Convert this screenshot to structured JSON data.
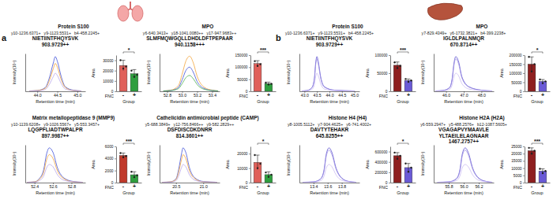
{
  "chart_data": [
    {
      "type": "line",
      "title": "Protein S100",
      "annotations": [
        "a"
      ],
      "ions": [
        "y10-1236.6371+",
        "y9-1123.5531+",
        "b4-458.2245+"
      ],
      "sequence": [
        "NIETIINTFHQYSVK"
      ],
      "mz": "903.9729++",
      "xlabel": "Retention time (min)",
      "ylabel": "Intensity(10⁵)",
      "x": [
        43.8,
        44.0,
        44.2,
        44.3,
        44.4,
        44.45,
        44.5,
        44.6,
        44.7,
        44.9,
        45.1
      ],
      "xlim": [
        43.7,
        45.2
      ],
      "xticks": [
        {
          "value": 44,
          "label": "44.0"
        },
        44.5,
        {
          "value": 45,
          "label": "45.0"
        }
      ],
      "ylim": [
        0,
        10
      ],
      "tick_labels": "x",
      "series": [
        {
          "color": "#3f51d8",
          "values": [
            0.1,
            0.2,
            1.0,
            3.5,
            7.5,
            9.2,
            8.0,
            3.8,
            1.2,
            0.3,
            0.1
          ]
        },
        {
          "color": "#f2a33a",
          "values": [
            0.1,
            0.2,
            0.8,
            2.8,
            6.0,
            7.4,
            6.4,
            3.0,
            1.0,
            0.2,
            0.1
          ]
        },
        {
          "color": "#b9a6ea",
          "values": [
            0.1,
            0.1,
            0.5,
            1.8,
            3.9,
            4.8,
            4.2,
            2.0,
            0.6,
            0.2,
            0.1
          ]
        }
      ]
    },
    {
      "type": "bar",
      "xlabel": "Group",
      "ylabel": "Area",
      "annotations": [
        "FNC"
      ],
      "categories": [
        "-",
        "+"
      ],
      "values": [
        25000,
        17000
      ],
      "errors": [
        5000,
        4000
      ],
      "points": [
        [
          30000,
          22000,
          24000
        ],
        [
          20000,
          14000,
          16000
        ]
      ],
      "colors": [
        "#e0605a",
        "#2e9e3e"
      ],
      "ylim": [
        0,
        35000
      ],
      "yticks": [
        0,
        10000,
        20000,
        30000
      ],
      "significance": "*"
    },
    {
      "type": "line",
      "title": "MPO",
      "ions": [
        "y6-640.3413+",
        "y18-1041.0080++",
        "y17-947.9683++"
      ],
      "sequence": [
        "SLMFMQWGQLLDHDLDFTPEPAAR"
      ],
      "mz": "940.1158+++",
      "xlabel": "Retention time (min)",
      "ylabel": "Intensity(10⁵)",
      "x": [
        52.75,
        52.85,
        52.95,
        53.0,
        53.05,
        53.1,
        53.15,
        53.2,
        53.3,
        53.4,
        53.48
      ],
      "xlim": [
        52.7,
        53.5
      ],
      "xticks": [
        52.8,
        {
          "value": 53,
          "label": "53.0"
        },
        53.2,
        53.4
      ],
      "ylim": [
        0,
        10
      ],
      "tick_labels": "x",
      "series": [
        {
          "color": "#f2a33a",
          "values": [
            0.1,
            0.3,
            1.5,
            4.5,
            8.0,
            9.3,
            7.5,
            4.0,
            1.0,
            0.3,
            0.1
          ]
        },
        {
          "color": "#3f51d8",
          "values": [
            0.1,
            0.2,
            1.0,
            3.0,
            5.5,
            6.4,
            5.0,
            2.6,
            0.7,
            0.2,
            0.1
          ]
        },
        {
          "color": "#4caf50",
          "values": [
            0.1,
            0.2,
            0.7,
            2.0,
            3.6,
            4.2,
            3.3,
            1.8,
            0.5,
            0.2,
            0.1
          ]
        }
      ]
    },
    {
      "type": "bar",
      "xlabel": "Group",
      "ylabel": "Area",
      "annotations": [
        "FNC"
      ],
      "categories": [
        "-",
        "+"
      ],
      "values": [
        115000,
        32000
      ],
      "errors": [
        12000,
        6000
      ],
      "points": [
        [
          125000,
          105000,
          112000
        ],
        [
          36000,
          28000,
          31000
        ]
      ],
      "colors": [
        "#e0605a",
        "#2e9e3e"
      ],
      "ylim": [
        0,
        150000
      ],
      "yticks": [
        0,
        50000,
        100000,
        150000
      ],
      "significance": "***"
    },
    {
      "type": "line",
      "title": "Matrix metallopeptidase 9 (MMP9)",
      "ions": [
        "y10-1139.6208+",
        "y9-1026.5567+",
        "y5-553.3457+"
      ],
      "sequence": [
        "LQGPFLIADTWPALPR"
      ],
      "mz": "897.9987++",
      "xlabel": "Retention time (min)",
      "ylabel": "Intensity(10⁵)",
      "x": [
        52.32,
        52.4,
        52.45,
        52.5,
        52.53,
        52.56,
        52.6,
        52.65,
        52.72,
        52.82,
        52.92
      ],
      "xlim": [
        52.3,
        52.95
      ],
      "xticks": [
        52.4,
        52.6,
        52.8
      ],
      "ylim": [
        0,
        10
      ],
      "tick_labels": "x",
      "series": [
        {
          "color": "#3f51d8",
          "values": [
            0.1,
            0.2,
            1.0,
            3.5,
            7.5,
            9.2,
            8.0,
            3.8,
            1.2,
            0.3,
            0.1
          ]
        },
        {
          "color": "#f2a33a",
          "values": [
            0.1,
            0.2,
            0.8,
            2.8,
            6.0,
            7.4,
            6.4,
            3.0,
            1.0,
            0.2,
            0.1
          ]
        },
        {
          "color": "#b9a6ea",
          "values": [
            0.1,
            0.1,
            0.5,
            1.8,
            3.9,
            4.8,
            4.2,
            2.0,
            0.6,
            0.2,
            0.1
          ]
        }
      ]
    },
    {
      "type": "bar",
      "xlabel": "Group",
      "ylabel": "Area",
      "annotations": [
        "FNC"
      ],
      "categories": [
        "-",
        "+"
      ],
      "values": [
        4500,
        1300
      ],
      "errors": [
        400,
        500
      ],
      "points": [
        [
          4900,
          4200,
          4400
        ],
        [
          1800,
          900,
          1200
        ]
      ],
      "colors": [
        "#c0392b",
        "#2e9e3e"
      ],
      "ylim": [
        0,
        6000
      ],
      "yticks": [
        0,
        2000,
        4000,
        6000
      ],
      "significance": "***"
    },
    {
      "type": "line",
      "title": "Cathelicidin antimicrobial peptide (CAMP)",
      "ions": [
        "y5-688.3849+",
        "y12-756.8466++",
        "y9-582.2829++"
      ],
      "sequence": [
        "DSFDISCDKDNRR"
      ],
      "mz": "814.3601++",
      "xlabel": "Retention time (min)",
      "ylabel": "Intensity(10⁵)",
      "x": [
        20.25,
        20.4,
        20.5,
        20.55,
        20.6,
        20.63,
        20.68,
        20.75,
        20.85,
        21.0,
        21.25
      ],
      "xlim": [
        20.2,
        21.3
      ],
      "xticks": [
        20.5,
        {
          "value": 21,
          "label": "21.0"
        }
      ],
      "ylim": [
        0,
        10
      ],
      "tick_labels": "x",
      "series": [
        {
          "color": "#3f51d8",
          "values": [
            0.1,
            0.2,
            1.0,
            3.5,
            7.5,
            9.2,
            8.0,
            3.8,
            1.2,
            0.3,
            0.1
          ]
        },
        {
          "color": "#f2a33a",
          "values": [
            0.1,
            0.2,
            0.8,
            2.8,
            6.0,
            7.4,
            6.4,
            3.0,
            1.0,
            0.2,
            0.1
          ]
        },
        {
          "color": "#b9a6ea",
          "values": [
            0.1,
            0.1,
            0.5,
            1.8,
            3.9,
            4.8,
            4.2,
            2.0,
            0.6,
            0.2,
            0.1
          ]
        }
      ]
    },
    {
      "type": "bar",
      "xlabel": "Group",
      "ylabel": "Area",
      "annotations": [
        "FNC"
      ],
      "categories": [
        "-",
        "+"
      ],
      "values": [
        14000,
        5500
      ],
      "errors": [
        5000,
        2000
      ],
      "points": [
        [
          19000,
          10000,
          13000
        ],
        [
          7000,
          4000,
          5500
        ]
      ],
      "colors": [
        "#e0605a",
        "#2e9e3e"
      ],
      "ylim": [
        0,
        25000
      ],
      "yticks": [
        0,
        10000,
        20000
      ],
      "significance": "*"
    },
    {
      "type": "line",
      "title": "Protein S100",
      "annotations": [
        "b"
      ],
      "ions": [
        "y10-1236.6371+",
        "y9-1123.5531+",
        "b4-458.2245+"
      ],
      "sequence": [
        "NIETIINTFHQYSVK"
      ],
      "mz": "903.9729++",
      "xlabel": "Retention time (min)",
      "ylabel": "Intensity(10⁵)",
      "x": [
        42.9,
        43.1,
        43.3,
        43.4,
        43.45,
        43.5,
        43.55,
        43.65,
        43.8,
        44.2,
        45.0
      ],
      "xlim": [
        42.8,
        45.2
      ],
      "xticks": [
        {
          "value": 43,
          "label": "43.0"
        },
        43.5,
        {
          "value": 44,
          "label": "44.0"
        },
        44.5,
        {
          "value": 45,
          "label": "45.0"
        }
      ],
      "ylim": [
        0,
        10
      ],
      "tick_labels": "x",
      "series": [
        {
          "color": "#5a4fcf",
          "values": [
            0.1,
            0.2,
            1.0,
            3.5,
            7.5,
            9.2,
            8.0,
            3.8,
            1.2,
            0.3,
            0.1
          ]
        },
        {
          "color": "#9d8fe3",
          "values": [
            0.1,
            0.2,
            0.9,
            3.2,
            7.0,
            8.6,
            7.4,
            3.5,
            1.1,
            0.3,
            0.1
          ]
        },
        {
          "color": "#cbbdf2",
          "values": [
            0.1,
            0.1,
            0.5,
            1.8,
            3.9,
            4.8,
            4.2,
            2.0,
            0.6,
            0.2,
            0.1
          ]
        }
      ]
    },
    {
      "type": "bar",
      "xlabel": "Group",
      "ylabel": "Area",
      "annotations": [
        "FNC"
      ],
      "categories": [
        "-",
        "+"
      ],
      "values": [
        72000,
        30000
      ],
      "errors": [
        9000,
        4000
      ],
      "points": [
        [
          80000,
          64000,
          70000
        ],
        [
          34000,
          26000,
          30000
        ]
      ],
      "colors": [
        "#8e1f1f",
        "#6a5ad6"
      ],
      "ylim": [
        0,
        100000
      ],
      "yticks": [
        0,
        50000,
        100000
      ],
      "significance": "***"
    },
    {
      "type": "line",
      "title": "MPO",
      "ions": [
        "y7-829.4349+",
        "y6-1732.3821+",
        "b4-399.2238+"
      ],
      "sequence": [
        "IGLDLPALNMQR"
      ],
      "mz": "670.8714++",
      "xlabel": "Retention time (min)",
      "ylabel": "Intensity(10⁵)",
      "x": [
        45.4,
        45.8,
        46.2,
        46.35,
        46.45,
        46.55,
        46.7,
        46.9,
        47.3,
        48.0,
        48.6
      ],
      "xlim": [
        45.3,
        48.7
      ],
      "xticks": [
        {
          "value": 46,
          "label": "46.0"
        },
        {
          "value": 47,
          "label": "47.0"
        },
        {
          "value": 48,
          "label": "48.0"
        }
      ],
      "ylim": [
        0,
        10
      ],
      "tick_labels": "x",
      "series": [
        {
          "color": "#5a4fcf",
          "values": [
            0.1,
            0.2,
            1.0,
            3.5,
            7.5,
            9.2,
            8.0,
            3.8,
            1.2,
            0.3,
            0.1
          ]
        },
        {
          "color": "#9d8fe3",
          "values": [
            0.1,
            0.2,
            0.9,
            3.2,
            7.0,
            8.6,
            7.4,
            3.5,
            1.1,
            0.3,
            0.1
          ]
        },
        {
          "color": "#cbbdf2",
          "values": [
            0.1,
            0.1,
            0.5,
            1.8,
            3.9,
            4.8,
            4.2,
            2.0,
            0.6,
            0.2,
            0.1
          ]
        }
      ]
    },
    {
      "type": "bar",
      "xlabel": "Group",
      "ylabel": "Area",
      "annotations": [
        "FNC"
      ],
      "categories": [
        "-",
        "+"
      ],
      "values": [
        150000,
        55000
      ],
      "errors": [
        40000,
        10000
      ],
      "points": [
        [
          190000,
          110000,
          150000
        ],
        [
          65000,
          45000,
          55000
        ]
      ],
      "colors": [
        "#8e1f1f",
        "#6a5ad6"
      ],
      "ylim": [
        0,
        200000
      ],
      "yticks": [
        0,
        50000,
        100000,
        150000,
        200000
      ],
      "significance": "*"
    },
    {
      "type": "line",
      "title": "Histone H4 (H4)",
      "ions": [
        "y8-1005.5112+",
        "y7-904.4625+",
        "y6-741.4002+"
      ],
      "sequence": [
        "DAVTYTEHAKR"
      ],
      "mz": "645.8255++",
      "xlabel": "Retention time (min)",
      "ylabel": "Intensity(10⁶)",
      "x": [
        13.25,
        13.4,
        13.5,
        13.55,
        13.58,
        13.62,
        13.66,
        13.72,
        13.8,
        13.9,
        14.0
      ],
      "xlim": [
        13.2,
        14.05
      ],
      "xticks": [
        13.4,
        13.6,
        13.8
      ],
      "ylim": [
        0,
        10
      ],
      "tick_labels": "x",
      "series": [
        {
          "color": "#5a4fcf",
          "values": [
            0.1,
            0.2,
            1.0,
            3.5,
            7.5,
            9.2,
            8.0,
            3.8,
            1.2,
            0.3,
            0.1
          ]
        },
        {
          "color": "#9d8fe3",
          "values": [
            0.1,
            0.2,
            0.9,
            3.2,
            7.0,
            8.6,
            7.4,
            3.5,
            1.1,
            0.3,
            0.1
          ]
        },
        {
          "color": "#cbbdf2",
          "values": [
            0.1,
            0.1,
            0.5,
            1.8,
            3.9,
            4.8,
            4.2,
            2.0,
            0.6,
            0.2,
            0.1
          ]
        }
      ]
    },
    {
      "type": "bar",
      "xlabel": "Group",
      "ylabel": "Area",
      "annotations": [
        "FNC"
      ],
      "categories": [
        "-",
        "+"
      ],
      "values": [
        520000,
        290000
      ],
      "errors": [
        60000,
        80000
      ],
      "points": [
        [
          580000,
          460000,
          520000
        ],
        [
          370000,
          210000,
          290000
        ]
      ],
      "colors": [
        "#8e1f1f",
        "#6a5ad6"
      ],
      "ylim": [
        0,
        700000
      ],
      "yticks": [
        0,
        200000,
        400000,
        600000
      ],
      "significance": "*"
    },
    {
      "type": "line",
      "title": "Histone H2A (H2A)",
      "ions": [
        "y6-559.2947+",
        "y5-488.2576+",
        "b12-1087.5605+"
      ],
      "sequence": [
        "VGAGAPVYMAAVLE",
        "YLTAEILELAGNAAR"
      ],
      "mz": "1467.2757++",
      "xlabel": "Retention time (min)",
      "ylabel": "Intensity(10⁵)",
      "x": [
        55.65,
        55.8,
        55.9,
        55.95,
        55.98,
        56.02,
        56.06,
        56.12,
        56.2,
        56.3,
        56.38
      ],
      "xlim": [
        55.6,
        56.4
      ],
      "xticks": [
        55.8,
        {
          "value": 56,
          "label": "56.0"
        },
        56.2
      ],
      "ylim": [
        0,
        10
      ],
      "tick_labels": "x",
      "series": [
        {
          "color": "#5a4fcf",
          "values": [
            0.1,
            0.2,
            1.0,
            3.5,
            7.5,
            9.2,
            8.0,
            3.8,
            1.2,
            0.3,
            0.1
          ]
        },
        {
          "color": "#9d8fe3",
          "values": [
            0.1,
            0.2,
            0.9,
            3.2,
            7.0,
            8.6,
            7.4,
            3.5,
            1.1,
            0.3,
            0.1
          ]
        },
        {
          "color": "#cbbdf2",
          "values": [
            0.1,
            0.1,
            0.5,
            1.8,
            3.9,
            4.8,
            4.2,
            2.0,
            0.6,
            0.2,
            0.1
          ]
        }
      ]
    },
    {
      "type": "bar",
      "xlabel": "Group",
      "ylabel": "Area",
      "annotations": [
        "FNC"
      ],
      "categories": [
        "-",
        "+"
      ],
      "values": [
        22000,
        8000
      ],
      "errors": [
        2000,
        1500
      ],
      "points": [
        [
          24000,
          20000,
          22000
        ],
        [
          9500,
          6500,
          8000
        ]
      ],
      "colors": [
        "#8e1f1f",
        "#6a5ad6"
      ],
      "ylim": [
        0,
        25000
      ],
      "yticks": [
        0,
        5000,
        10000,
        15000,
        20000,
        25000
      ],
      "significance": "***"
    }
  ]
}
